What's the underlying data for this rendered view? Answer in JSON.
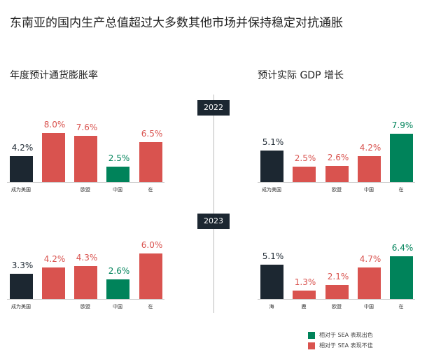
{
  "title": "东南亚的国内生产总值超过大多数其他市场并保持稳定对抗通胀",
  "colors": {
    "dark": "#1c2731",
    "red": "#d9534f",
    "green": "#00835a"
  },
  "legend": [
    {
      "label": "相对于 SEA 表现出色",
      "color": "#00835a"
    },
    {
      "label": "相对于 SEA 表现不佳",
      "color": "#d9534f"
    }
  ],
  "years": [
    "2022",
    "2023"
  ],
  "chart_data": [
    {
      "type": "bar",
      "title": "年度预计通货膨胀率",
      "year": "2022",
      "categories": [
        "成为美国",
        "",
        "欧盟",
        "中国",
        "在"
      ],
      "values": [
        4.2,
        8.0,
        7.6,
        2.5,
        6.5
      ],
      "labels": [
        "4.2%",
        "8.0%",
        "7.6%",
        "2.5%",
        "6.5%"
      ],
      "colors": [
        "dark",
        "red",
        "red",
        "green",
        "red"
      ]
    },
    {
      "type": "bar",
      "title": "预计实际 GDP 增长",
      "year": "2022",
      "categories": [
        "成为美国",
        "",
        "欧盟",
        "中国",
        "在"
      ],
      "values": [
        5.1,
        2.5,
        2.6,
        4.2,
        7.9
      ],
      "labels": [
        "5.1%",
        "2.5%",
        "2.6%",
        "4.2%",
        "7.9%"
      ],
      "colors": [
        "dark",
        "red",
        "red",
        "red",
        "green"
      ]
    },
    {
      "type": "bar",
      "title": "",
      "year": "2023",
      "categories": [
        "成为美国",
        "",
        "欧盟",
        "中国",
        "在"
      ],
      "values": [
        3.3,
        4.2,
        4.3,
        2.6,
        6.0
      ],
      "labels": [
        "3.3%",
        "4.2%",
        "4.3%",
        "2.6%",
        "6.0%"
      ],
      "colors": [
        "dark",
        "red",
        "red",
        "green",
        "red"
      ]
    },
    {
      "type": "bar",
      "title": "",
      "year": "2023",
      "categories": [
        "海",
        "鹿",
        "欧盟",
        "中国",
        "在"
      ],
      "values": [
        5.1,
        1.3,
        2.1,
        4.7,
        6.4
      ],
      "labels": [
        "5.1%",
        "1.3%",
        "2.1%",
        "4.7%",
        "6.4%"
      ],
      "colors": [
        "dark",
        "red",
        "red",
        "red",
        "green"
      ]
    }
  ]
}
